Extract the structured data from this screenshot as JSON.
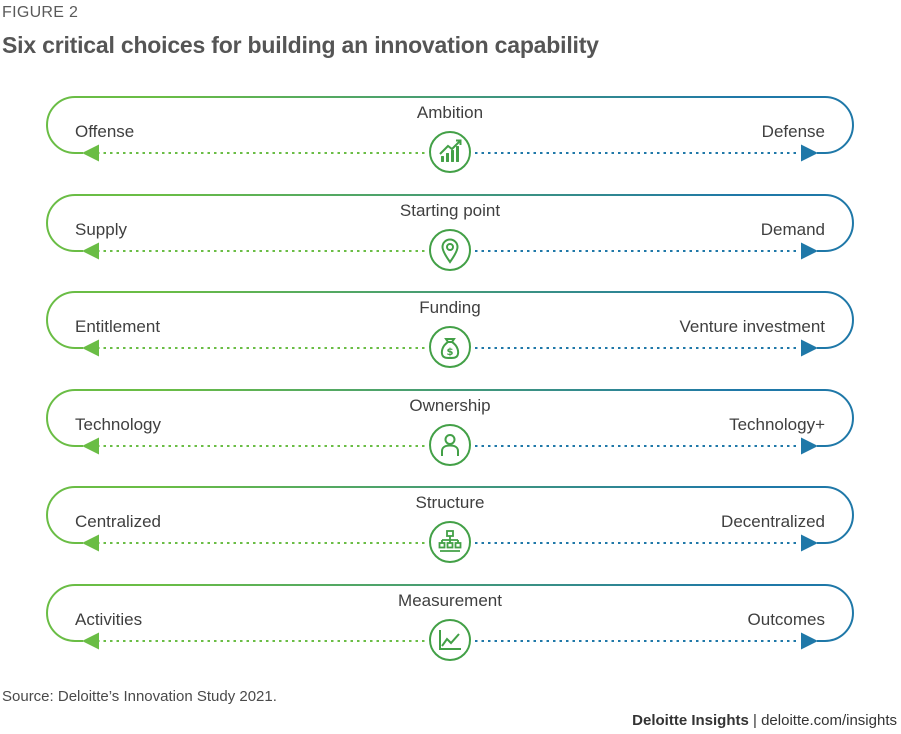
{
  "figure_label": "FIGURE 2",
  "title": "Six critical choices for building an innovation capability",
  "colors": {
    "green": "#6abd45",
    "blue": "#1f78a8",
    "icon_green": "#43a047"
  },
  "choices": [
    {
      "dimension": "Ambition",
      "left": "Offense",
      "right": "Defense",
      "icon": "growth-chart-icon"
    },
    {
      "dimension": "Starting point",
      "left": "Supply",
      "right": "Demand",
      "icon": "location-pin-icon"
    },
    {
      "dimension": "Funding",
      "left": "Entitlement",
      "right": "Venture investment",
      "icon": "money-bag-icon"
    },
    {
      "dimension": "Ownership",
      "left": "Technology",
      "right": "Technology+",
      "icon": "person-icon"
    },
    {
      "dimension": "Structure",
      "left": "Centralized",
      "right": "Decentralized",
      "icon": "org-chart-icon"
    },
    {
      "dimension": "Measurement",
      "left": "Activities",
      "right": "Outcomes",
      "icon": "line-chart-icon"
    }
  ],
  "source": "Source: Deloitte’s Innovation Study 2021.",
  "footer": {
    "brand": "Deloitte Insights",
    "separator": " | ",
    "url": "deloitte.com/insights"
  }
}
